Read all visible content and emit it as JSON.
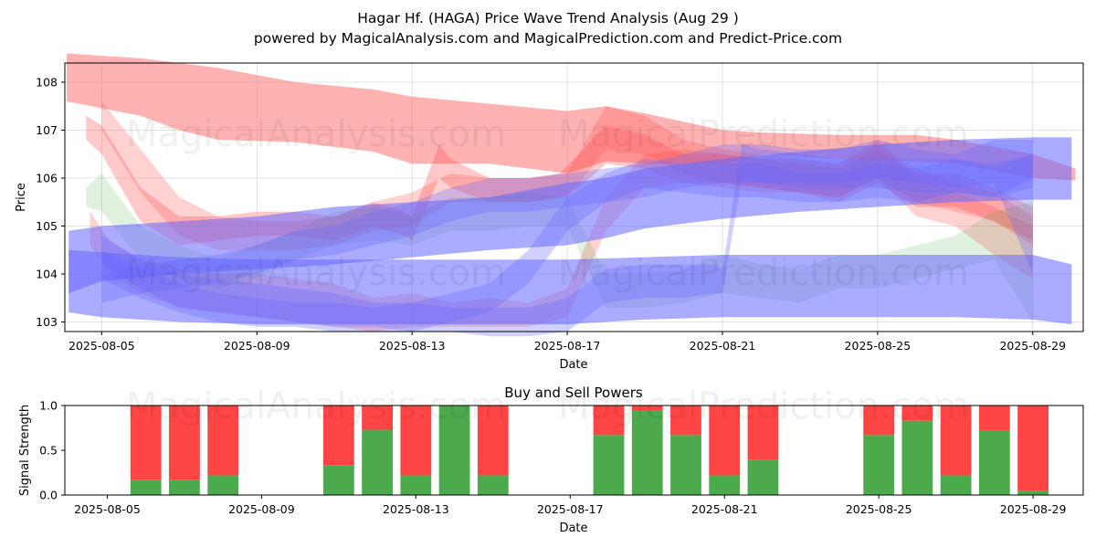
{
  "title": "Hagar Hf. (HAGA) Price Wave Trend Analysis (Aug 29 )",
  "subtitle": "powered by MagicalAnalysis.com and MagicalPrediction.com and Predict-Price.com",
  "watermarks": [
    "MagicalAnalysis.com",
    "MagicalPrediction.com"
  ],
  "chart_data": [
    {
      "type": "area",
      "title": "Hagar Hf. (HAGA) Price Wave Trend Analysis (Aug 29 )",
      "xlabel": "Date",
      "ylabel": "Price",
      "xlim": [
        -0.95,
        25.3
      ],
      "ylim": [
        102.8,
        108.4
      ],
      "x_ticks": [
        {
          "x": 0,
          "label": "2025-08-05"
        },
        {
          "x": 4,
          "label": "2025-08-09"
        },
        {
          "x": 8,
          "label": "2025-08-13"
        },
        {
          "x": 12,
          "label": "2025-08-17"
        },
        {
          "x": 16,
          "label": "2025-08-21"
        },
        {
          "x": 20,
          "label": "2025-08-25"
        },
        {
          "x": 24,
          "label": "2025-08-29"
        }
      ],
      "y_ticks": [
        103,
        104,
        105,
        106,
        107,
        108
      ],
      "grid": true,
      "x_dates": [
        "2025-08-04",
        "2025-08-05",
        "2025-08-06",
        "2025-08-07",
        "2025-08-08",
        "2025-08-09",
        "2025-08-10",
        "2025-08-11",
        "2025-08-12",
        "2025-08-13",
        "2025-08-14",
        "2025-08-15",
        "2025-08-16",
        "2025-08-17",
        "2025-08-18",
        "2025-08-19",
        "2025-08-20",
        "2025-08-21",
        "2025-08-22",
        "2025-08-23",
        "2025-08-24",
        "2025-08-25",
        "2025-08-26",
        "2025-08-27",
        "2025-08-28",
        "2025-08-29",
        "2025-08-30"
      ],
      "series": [
        {
          "name": "red-upper-band",
          "color": "#ff6666",
          "opacity": 0.5,
          "x": [
            -0.9,
            1,
            2,
            3,
            5,
            7,
            8,
            10,
            12,
            13,
            14,
            16,
            17,
            19,
            21,
            22,
            24,
            25.1
          ],
          "upper": [
            108.6,
            108.5,
            108.4,
            108.3,
            108.0,
            107.85,
            107.7,
            107.55,
            107.4,
            107.5,
            107.35,
            107.0,
            106.95,
            106.9,
            106.9,
            106.8,
            106.5,
            106.2
          ],
          "lower": [
            107.6,
            107.3,
            107.0,
            106.8,
            106.75,
            106.55,
            106.3,
            106.3,
            106.1,
            106.35,
            106.3,
            106.3,
            106.5,
            106.4,
            106.35,
            106.3,
            106.0,
            105.95
          ]
        },
        {
          "name": "red-wave-1",
          "color": "#ff4d4d",
          "opacity": 0.3,
          "x": [
            -0.4,
            0,
            1,
            2,
            3,
            4,
            5,
            6,
            7,
            7.8,
            8,
            8.7,
            9,
            10,
            11,
            11.8,
            12.3,
            13,
            14,
            15,
            16,
            17,
            18,
            19,
            20,
            21,
            22,
            23,
            24
          ],
          "upper": [
            107.3,
            107.1,
            105.8,
            105.2,
            105.2,
            105.3,
            105.3,
            105.2,
            105.5,
            105.3,
            105.2,
            106.7,
            106.4,
            106.0,
            106.0,
            106.1,
            106.5,
            107.1,
            106.9,
            106.5,
            106.5,
            106.4,
            106.3,
            106.2,
            106.6,
            106.1,
            106.1,
            105.8,
            105.4
          ],
          "lower": [
            106.8,
            106.5,
            105.1,
            104.6,
            104.7,
            104.8,
            104.8,
            104.7,
            105.0,
            104.8,
            104.7,
            106.0,
            105.8,
            105.5,
            105.5,
            105.6,
            105.8,
            106.3,
            106.2,
            105.9,
            105.9,
            105.8,
            105.7,
            105.5,
            105.9,
            105.4,
            105.4,
            105.1,
            104.7
          ]
        },
        {
          "name": "red-wave-2",
          "color": "#ff4d4d",
          "opacity": 0.25,
          "x": [
            0,
            1,
            2,
            3,
            4,
            5,
            6,
            7,
            8,
            9,
            10,
            11,
            12,
            13,
            14,
            15,
            16,
            17,
            18,
            19,
            20,
            21,
            22,
            23,
            24
          ],
          "upper": [
            107.6,
            106.6,
            105.6,
            105.2,
            105.1,
            105.1,
            105.2,
            105.5,
            105.7,
            106.1,
            106.0,
            106.0,
            106.1,
            107.5,
            107.3,
            106.8,
            106.6,
            106.5,
            106.4,
            106.3,
            106.7,
            106.2,
            105.9,
            105.7,
            105.2
          ],
          "lower": [
            107.0,
            105.7,
            104.8,
            104.5,
            104.5,
            104.5,
            104.6,
            104.9,
            105.0,
            105.5,
            105.5,
            105.5,
            105.6,
            106.6,
            106.5,
            106.1,
            105.9,
            105.8,
            105.7,
            105.6,
            106.0,
            105.5,
            105.3,
            105.1,
            104.6
          ]
        },
        {
          "name": "red-wave-3",
          "color": "#ff4d4d",
          "opacity": 0.25,
          "x": [
            -0.3,
            0.2,
            1,
            2,
            3,
            4,
            5,
            6,
            7,
            8,
            9,
            10,
            11,
            12,
            13,
            14,
            15,
            16,
            17,
            18,
            19,
            20,
            21,
            22,
            23,
            24
          ],
          "upper": [
            105.3,
            104.7,
            104.3,
            104.1,
            104.0,
            104.0,
            103.9,
            103.8,
            103.5,
            103.6,
            103.4,
            103.5,
            103.4,
            103.7,
            105.6,
            106.5,
            106.6,
            106.5,
            106.4,
            106.4,
            106.3,
            106.8,
            106.0,
            105.7,
            105.4,
            105.0
          ],
          "lower": [
            104.6,
            104.0,
            103.6,
            103.3,
            103.2,
            103.1,
            103.0,
            102.9,
            102.8,
            102.9,
            102.9,
            102.9,
            102.9,
            103.1,
            104.9,
            105.8,
            105.9,
            105.8,
            105.7,
            105.7,
            105.6,
            106.0,
            105.2,
            105.0,
            104.4,
            103.9
          ]
        },
        {
          "name": "green-wave",
          "color": "#2ca02c",
          "opacity": 0.15,
          "x": [
            -0.4,
            0,
            1,
            2,
            3,
            4,
            5,
            6,
            7,
            8,
            9,
            10,
            11,
            12,
            13,
            14,
            15,
            16,
            17,
            18,
            19,
            20,
            21,
            22,
            23,
            24
          ],
          "upper": [
            105.8,
            106.1,
            105.0,
            104.6,
            104.3,
            104.6,
            104.9,
            105.3,
            105.4,
            105.2,
            105.6,
            105.6,
            105.7,
            105.6,
            104.0,
            104.0,
            104.1,
            104.4,
            104.2,
            104.1,
            104.4,
            104.4,
            104.6,
            104.8,
            105.3,
            105.5
          ],
          "lower": [
            105.4,
            105.3,
            104.3,
            103.9,
            103.7,
            103.9,
            104.3,
            104.6,
            104.7,
            104.6,
            104.9,
            104.9,
            105.0,
            105.0,
            103.3,
            103.3,
            103.4,
            103.6,
            103.5,
            103.4,
            103.7,
            103.7,
            103.9,
            104.1,
            104.3,
            103.0
          ]
        },
        {
          "name": "blue-upper-band",
          "color": "#6666ff",
          "opacity": 0.55,
          "x": [
            -0.85,
            0,
            2,
            4,
            6,
            8,
            10,
            12,
            13,
            14,
            16,
            18,
            20,
            22,
            24,
            25.0
          ],
          "upper": [
            104.9,
            105.0,
            105.1,
            105.2,
            105.4,
            105.5,
            105.6,
            105.9,
            106.0,
            106.2,
            106.4,
            106.55,
            106.7,
            106.8,
            106.85,
            106.85
          ],
          "lower": [
            103.6,
            103.85,
            104.0,
            104.1,
            104.2,
            104.35,
            104.5,
            104.6,
            104.75,
            104.95,
            105.15,
            105.3,
            105.4,
            105.5,
            105.55,
            105.55
          ]
        },
        {
          "name": "blue-lower-band",
          "color": "#6666ff",
          "opacity": 0.55,
          "x": [
            -0.85,
            0,
            2,
            4,
            6,
            8,
            10,
            12,
            14,
            16,
            18,
            20,
            22,
            24,
            25.0
          ],
          "upper": [
            104.5,
            104.45,
            104.35,
            104.3,
            104.3,
            104.3,
            104.3,
            104.3,
            104.35,
            104.4,
            104.4,
            104.4,
            104.4,
            104.4,
            104.2
          ],
          "lower": [
            103.2,
            103.1,
            103.0,
            102.95,
            102.95,
            102.95,
            102.95,
            102.95,
            103.05,
            103.1,
            103.1,
            103.1,
            103.1,
            103.05,
            102.95
          ]
        },
        {
          "name": "blue-wave-1",
          "color": "#6666ff",
          "opacity": 0.3,
          "x": [
            0,
            1,
            2,
            3,
            4,
            5,
            6,
            7,
            8,
            9,
            10,
            11,
            12,
            13,
            14,
            15,
            15.8,
            16,
            16.5,
            17,
            18,
            19,
            20,
            21,
            22,
            23,
            24
          ],
          "upper": [
            104.8,
            104.3,
            104.0,
            103.9,
            103.8,
            103.7,
            103.6,
            103.4,
            103.4,
            103.3,
            103.3,
            103.3,
            103.5,
            104.1,
            104.2,
            104.2,
            104.2,
            104.1,
            106.7,
            106.6,
            106.5,
            106.4,
            106.4,
            106.4,
            106.4,
            106.2,
            106.5
          ],
          "lower": [
            104.2,
            103.7,
            103.3,
            103.2,
            103.1,
            103.0,
            102.9,
            102.9,
            102.8,
            102.8,
            102.7,
            102.7,
            102.8,
            103.4,
            103.5,
            103.5,
            103.6,
            103.6,
            106.0,
            105.9,
            105.8,
            105.8,
            105.8,
            105.7,
            105.7,
            105.6,
            106.0
          ]
        },
        {
          "name": "blue-wave-2",
          "color": "#6666ff",
          "opacity": 0.3,
          "x": [
            0,
            1,
            2,
            3,
            4,
            5,
            6,
            7,
            8,
            9,
            10,
            11,
            12,
            13,
            14,
            15,
            16,
            17,
            18,
            19,
            20,
            21,
            22,
            23,
            24
          ],
          "upper": [
            104.5,
            104.1,
            103.8,
            103.6,
            103.5,
            103.4,
            103.4,
            103.3,
            103.4,
            103.6,
            103.8,
            104.5,
            105.6,
            106.1,
            106.4,
            106.3,
            106.3,
            106.3,
            106.1,
            106.1,
            106.3,
            106.2,
            106.4,
            106.3,
            106.5
          ],
          "lower": [
            103.9,
            103.5,
            103.2,
            103.0,
            102.9,
            102.9,
            102.8,
            102.8,
            102.8,
            103.0,
            103.2,
            103.8,
            104.9,
            105.5,
            105.8,
            105.7,
            105.6,
            105.6,
            105.5,
            105.5,
            105.6,
            105.5,
            105.7,
            105.6,
            105.8
          ]
        },
        {
          "name": "blue-wave-3",
          "color": "#6666ff",
          "opacity": 0.3,
          "x": [
            0,
            1,
            2,
            3,
            4,
            5,
            6,
            7,
            8,
            9,
            10,
            11,
            12,
            13,
            14,
            15,
            16,
            17,
            18,
            19,
            20,
            21,
            22,
            23,
            24
          ],
          "upper": [
            104.0,
            104.2,
            104.3,
            104.4,
            104.6,
            104.9,
            105.0,
            105.3,
            105.5,
            105.8,
            106.0,
            106.0,
            106.1,
            106.2,
            106.3,
            106.5,
            106.7,
            106.7,
            106.6,
            106.6,
            106.8,
            106.6,
            106.5,
            106.8,
            106.8
          ],
          "lower": [
            103.4,
            103.6,
            103.7,
            103.8,
            104.0,
            104.3,
            104.4,
            104.6,
            104.8,
            105.1,
            105.3,
            105.3,
            105.4,
            105.5,
            105.6,
            105.8,
            105.9,
            105.9,
            105.9,
            105.9,
            106.0,
            105.9,
            105.8,
            105.9,
            104.0
          ]
        }
      ]
    },
    {
      "type": "bar",
      "title": "Buy and Sell Powers",
      "xlabel": "Date",
      "ylabel": "Signal Strength",
      "xlim": [
        -1.1,
        25.3
      ],
      "ylim": [
        0,
        1.0
      ],
      "y_ticks": [
        0.0,
        0.5,
        1.0
      ],
      "x_ticks": [
        {
          "x": 0,
          "label": "2025-08-05"
        },
        {
          "x": 4,
          "label": "2025-08-09"
        },
        {
          "x": 8,
          "label": "2025-08-13"
        },
        {
          "x": 12,
          "label": "2025-08-17"
        },
        {
          "x": 16,
          "label": "2025-08-21"
        },
        {
          "x": 20,
          "label": "2025-08-25"
        },
        {
          "x": 24,
          "label": "2025-08-29"
        }
      ],
      "categories": [
        "2025-08-06",
        "2025-08-07",
        "2025-08-08",
        "2025-08-11",
        "2025-08-12",
        "2025-08-13",
        "2025-08-14",
        "2025-08-15",
        "2025-08-18",
        "2025-08-19",
        "2025-08-20",
        "2025-08-21",
        "2025-08-22",
        "2025-08-25",
        "2025-08-26",
        "2025-08-27",
        "2025-08-28",
        "2025-08-29"
      ],
      "x": [
        1,
        2,
        3,
        6,
        7,
        8,
        9,
        10,
        13,
        14,
        15,
        16,
        17,
        20,
        21,
        22,
        23,
        24
      ],
      "series": [
        {
          "name": "Buy",
          "color": "#4caa4c",
          "values": [
            0.17,
            0.17,
            0.22,
            0.33,
            0.73,
            0.22,
            1.0,
            0.22,
            0.67,
            0.94,
            0.67,
            0.22,
            0.39,
            0.67,
            0.83,
            0.22,
            0.72,
            0.05
          ]
        },
        {
          "name": "Sell",
          "color": "#ff4444",
          "values": [
            0.83,
            0.83,
            0.78,
            0.67,
            0.27,
            0.78,
            0.0,
            0.78,
            0.33,
            0.06,
            0.33,
            0.78,
            0.61,
            0.33,
            0.17,
            0.78,
            0.28,
            0.95
          ]
        }
      ]
    }
  ]
}
